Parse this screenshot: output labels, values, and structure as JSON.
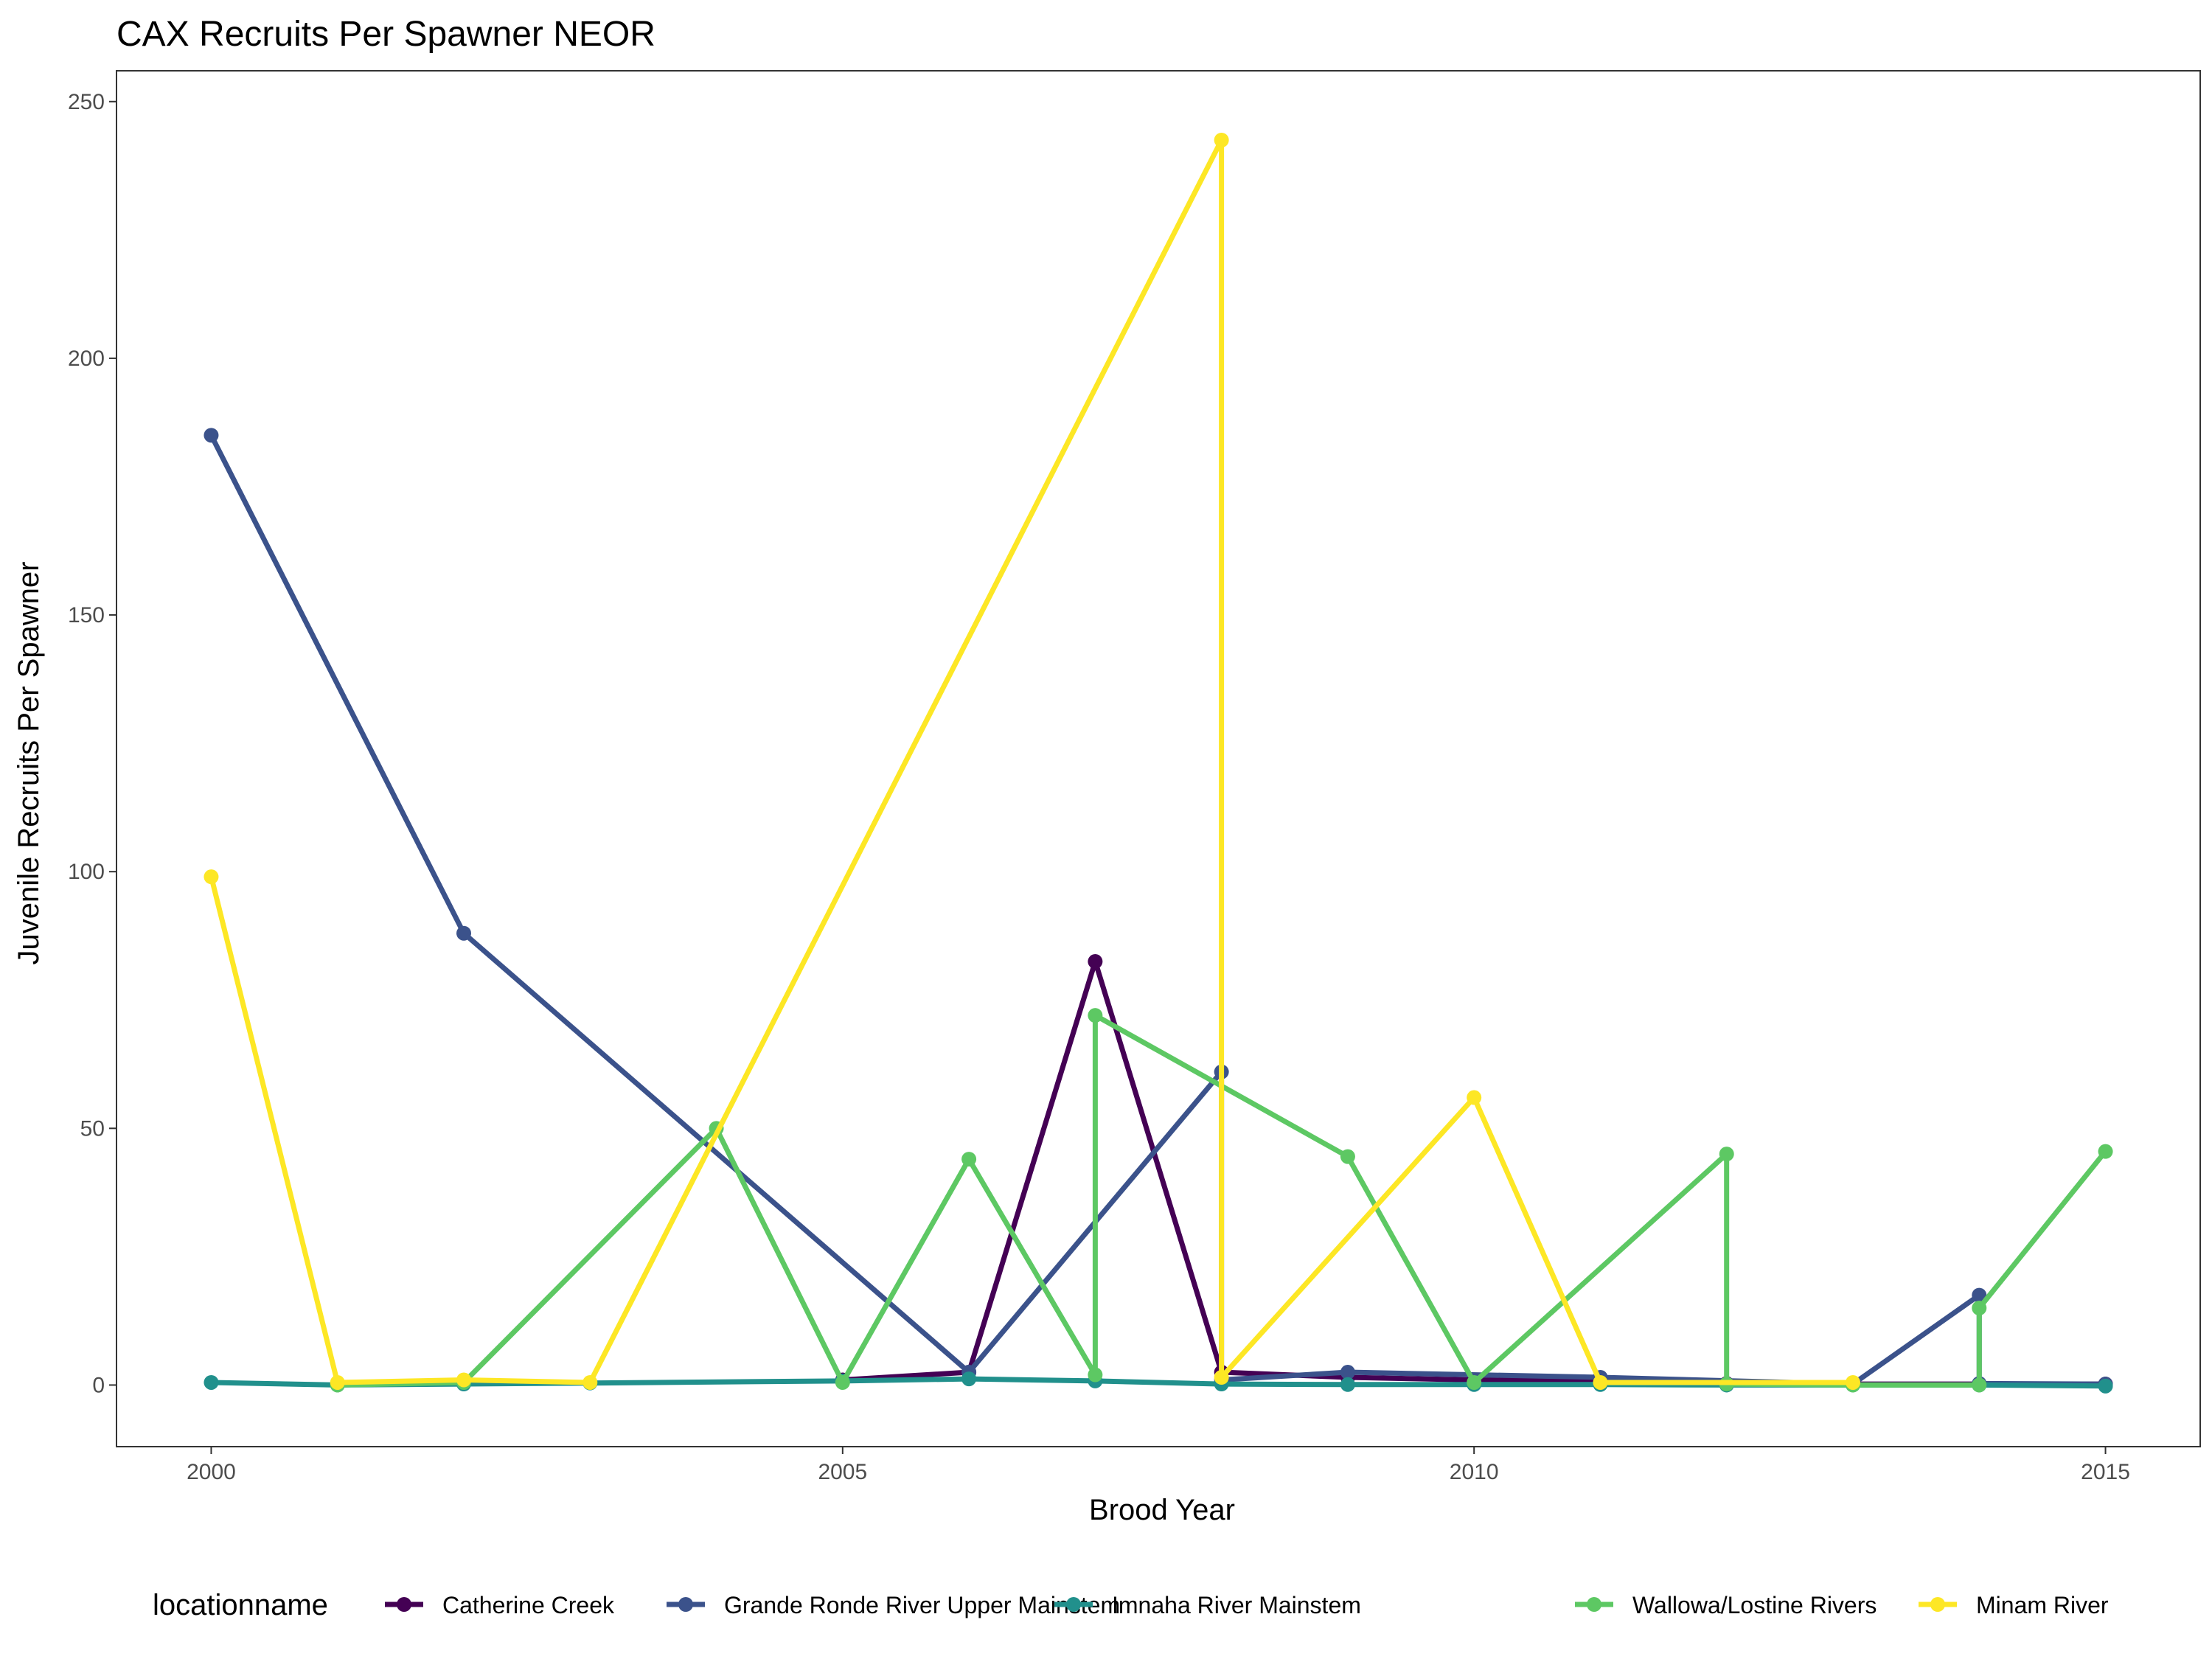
{
  "chart_data": {
    "type": "line",
    "title": "CAX Recruits Per Spawner NEOR",
    "xlabel": "Brood Year",
    "ylabel": "Juvenile Recruits Per Spawner",
    "xlim": [
      1999.25,
      2015.75
    ],
    "ylim": [
      -12,
      256
    ],
    "x_ticks": [
      2000,
      2005,
      2010,
      2015
    ],
    "y_ticks": [
      0,
      50,
      100,
      150,
      200,
      250
    ],
    "grid": false,
    "legend": {
      "title": "locationname",
      "position": "bottom"
    },
    "series": [
      {
        "name": "Catherine Creek",
        "color": "#440154",
        "points": [
          [
            2005,
            1.0
          ],
          [
            2006,
            2.5
          ],
          [
            2007,
            82.5
          ],
          [
            2008,
            2.5
          ],
          [
            2009,
            1.5
          ],
          [
            2010,
            1.0
          ],
          [
            2011,
            0.8
          ],
          [
            2012,
            0.3
          ],
          [
            2013,
            0.2
          ],
          [
            2014,
            0.2
          ],
          [
            2015,
            0.2
          ]
        ]
      },
      {
        "name": "Grande Ronde River Upper Mainstem",
        "color": "#3b528b",
        "points": [
          [
            2000,
            185.0
          ],
          [
            2002,
            88.0
          ],
          [
            2006,
            2.5
          ],
          [
            2008,
            61.0
          ],
          [
            2008,
            1.0
          ],
          [
            2009,
            2.5
          ],
          [
            2011,
            1.5
          ],
          [
            2013,
            0.2
          ],
          [
            2014,
            17.5
          ],
          [
            2014,
            0.3
          ],
          [
            2015,
            0.2
          ]
        ]
      },
      {
        "name": "Imnaha River Mainstem",
        "color": "#21908c",
        "points": [
          [
            2000,
            0.5
          ],
          [
            2001,
            0.0
          ],
          [
            2002,
            0.2
          ],
          [
            2003,
            0.4
          ],
          [
            2005,
            0.8
          ],
          [
            2006,
            1.2
          ],
          [
            2007,
            0.8
          ],
          [
            2008,
            0.2
          ],
          [
            2009,
            0.1
          ],
          [
            2010,
            0.1
          ],
          [
            2011,
            0.1
          ],
          [
            2012,
            0.0
          ],
          [
            2013,
            0.0
          ],
          [
            2014,
            0.0
          ],
          [
            2015,
            -0.2
          ]
        ]
      },
      {
        "name": "Wallowa/Lostine Rivers",
        "color": "#5dc863",
        "points": [
          [
            2001,
            0.0
          ],
          [
            2002,
            0.5
          ],
          [
            2004,
            50.0
          ],
          [
            2005,
            0.5
          ],
          [
            2006,
            44.0
          ],
          [
            2007,
            2.0
          ],
          [
            2007,
            72.0
          ],
          [
            2009,
            44.5
          ],
          [
            2010,
            0.5
          ],
          [
            2012,
            45.0
          ],
          [
            2012,
            0.2
          ],
          [
            2013,
            0.0
          ],
          [
            2014,
            0.0
          ],
          [
            2014,
            15.0
          ],
          [
            2015,
            45.5
          ]
        ]
      },
      {
        "name": "Minam River",
        "color": "#fde725",
        "points": [
          [
            2000,
            99.0
          ],
          [
            2001,
            0.5
          ],
          [
            2002,
            1.0
          ],
          [
            2003,
            0.5
          ],
          [
            2008,
            242.5
          ],
          [
            2008,
            1.5
          ],
          [
            2010,
            56.0
          ],
          [
            2011,
            0.5
          ],
          [
            2013,
            0.5
          ]
        ]
      }
    ]
  }
}
